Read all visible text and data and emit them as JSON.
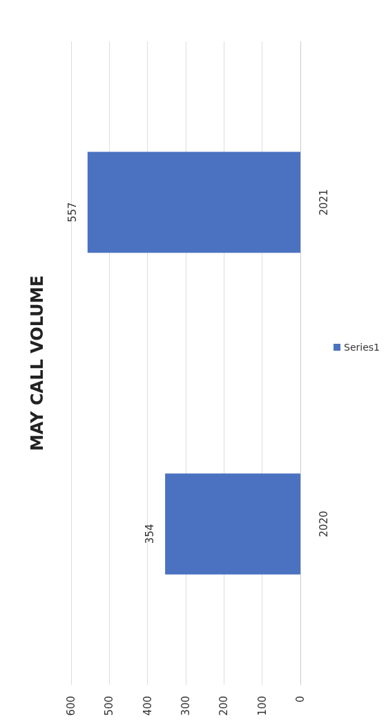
{
  "chart_data": {
    "type": "bar",
    "orientation": "horizontal",
    "title": "MAY CALL VOLUME",
    "categories": [
      "2021",
      "2020"
    ],
    "series": [
      {
        "name": "Series1",
        "color": "#4a72c0",
        "values": [
          557,
          354
        ]
      }
    ],
    "xlim": [
      600,
      0
    ],
    "xticks": [
      0,
      100,
      200,
      300,
      400,
      500,
      600
    ],
    "grid": "x",
    "legend": "right",
    "data_labels": true
  }
}
